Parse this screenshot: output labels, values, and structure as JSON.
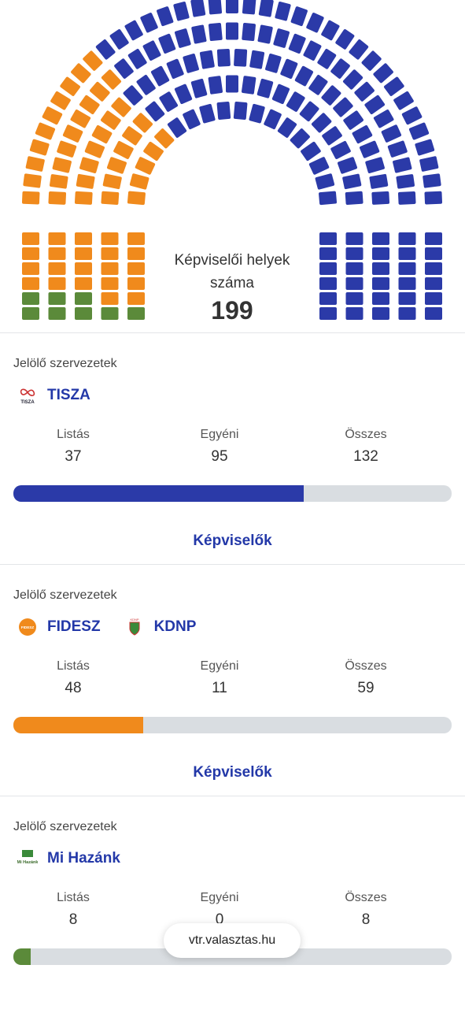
{
  "parliament": {
    "caption": "Képviselői helyek száma",
    "total": 199
  },
  "parties": [
    {
      "section_label": "Jelölő szervezetek",
      "organizations": [
        {
          "name": "TISZA",
          "logo_text": "TISZA"
        }
      ],
      "color": "#2b3aa8",
      "stats": [
        {
          "label": "Listás",
          "value": 37
        },
        {
          "label": "Egyéni",
          "value": 95
        },
        {
          "label": "Összes",
          "value": 132
        }
      ],
      "link": "Képviselők"
    },
    {
      "section_label": "Jelölő szervezetek",
      "organizations": [
        {
          "name": "FIDESZ",
          "logo_text": "FIDESZ"
        },
        {
          "name": "KDNP",
          "logo_text": "KDNP"
        }
      ],
      "color": "#f08a1c",
      "stats": [
        {
          "label": "Listás",
          "value": 48
        },
        {
          "label": "Egyéni",
          "value": 11
        },
        {
          "label": "Összes",
          "value": 59
        }
      ],
      "link": "Képviselők"
    },
    {
      "section_label": "Jelölő szervezetek",
      "organizations": [
        {
          "name": "Mi Hazánk",
          "logo_text": "Mi Hazánk"
        }
      ],
      "color": "#5b8a3a",
      "stats": [
        {
          "label": "Listás",
          "value": 8
        },
        {
          "label": "Egyéni",
          "value": 0
        },
        {
          "label": "Összes",
          "value": 8
        }
      ]
    }
  ],
  "footer": {
    "url": "vtr.valasztas.hu"
  }
}
